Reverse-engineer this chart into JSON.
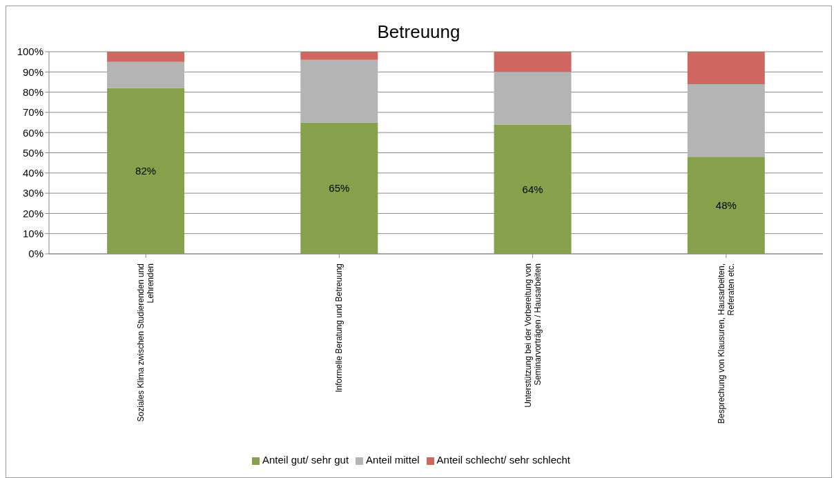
{
  "chart_data": {
    "type": "bar",
    "title": "Betreuung",
    "stacked": true,
    "categories": [
      "Soziales Klima zwischen Studierenden und Lehrenden",
      "Informelle Beratung und Betreuung",
      "Unterstützung bei der Vorbereitung von Seminarvorträgen / Hausarbeiten",
      "Besprechung von Klausuren, Hausarbeiten, Referaten etc."
    ],
    "series": [
      {
        "name": "Anteil gut/ sehr gut",
        "color": "#86a04b",
        "values": [
          82,
          65,
          64,
          48
        ],
        "value_labels": [
          "82%",
          "65%",
          "64%",
          "48%"
        ]
      },
      {
        "name": "Anteil mittel",
        "color": "#b4b4b4",
        "values": [
          13,
          31,
          26,
          36
        ]
      },
      {
        "name": "Anteil schlecht/ sehr schlecht",
        "color": "#cf665f",
        "values": [
          5,
          4,
          10,
          16
        ]
      }
    ],
    "ylim": [
      0,
      100
    ],
    "yticks": [
      {
        "value": 0,
        "label": "0%"
      },
      {
        "value": 10,
        "label": "10%"
      },
      {
        "value": 20,
        "label": "20%"
      },
      {
        "value": 30,
        "label": "30%"
      },
      {
        "value": 40,
        "label": "40%"
      },
      {
        "value": 50,
        "label": "50%"
      },
      {
        "value": 60,
        "label": "60%"
      },
      {
        "value": 70,
        "label": "70%"
      },
      {
        "value": 80,
        "label": "80%"
      },
      {
        "value": 90,
        "label": "90%"
      },
      {
        "value": 100,
        "label": "100%"
      }
    ],
    "grid": "y",
    "legend": "bottom"
  }
}
